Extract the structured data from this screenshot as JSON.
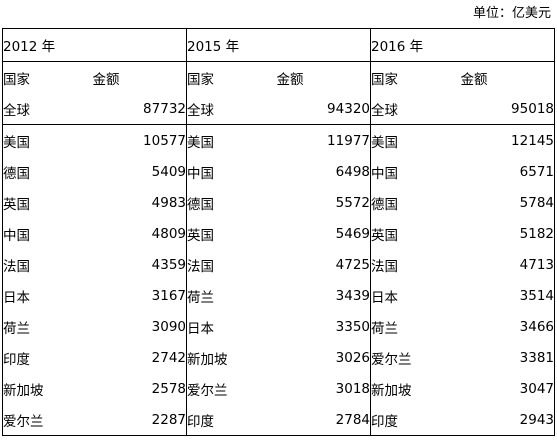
{
  "unit_label": "单位：亿美元",
  "headers": {
    "country": "国家",
    "amount": "金额"
  },
  "years": [
    "2012 年",
    "2015 年",
    "2016 年"
  ],
  "global_label": "全球",
  "global_values": [
    "87732",
    "94320",
    "95018"
  ],
  "rows": [
    [
      [
        "美国",
        "10577"
      ],
      [
        "美国",
        "11977"
      ],
      [
        "美国",
        "12145"
      ]
    ],
    [
      [
        "德国",
        "5409"
      ],
      [
        "中国",
        "6498"
      ],
      [
        "中国",
        "6571"
      ]
    ],
    [
      [
        "英国",
        "4983"
      ],
      [
        "德国",
        "5572"
      ],
      [
        "德国",
        "5784"
      ]
    ],
    [
      [
        "中国",
        "4809"
      ],
      [
        "英国",
        "5469"
      ],
      [
        "英国",
        "5182"
      ]
    ],
    [
      [
        "法国",
        "4359"
      ],
      [
        "法国",
        "4725"
      ],
      [
        "法国",
        "4713"
      ]
    ],
    [
      [
        "日本",
        "3167"
      ],
      [
        "荷兰",
        "3439"
      ],
      [
        "日本",
        "3514"
      ]
    ],
    [
      [
        "荷兰",
        "3090"
      ],
      [
        "日本",
        "3350"
      ],
      [
        "荷兰",
        "3466"
      ]
    ],
    [
      [
        "印度",
        "2742"
      ],
      [
        "新加坡",
        "3026"
      ],
      [
        "爱尔兰",
        "3381"
      ]
    ],
    [
      [
        "新加坡",
        "2578"
      ],
      [
        "爱尔兰",
        "3018"
      ],
      [
        "新加坡",
        "3047"
      ]
    ],
    [
      [
        "爱尔兰",
        "2287"
      ],
      [
        "印度",
        "2784"
      ],
      [
        "印度",
        "2943"
      ]
    ]
  ]
}
